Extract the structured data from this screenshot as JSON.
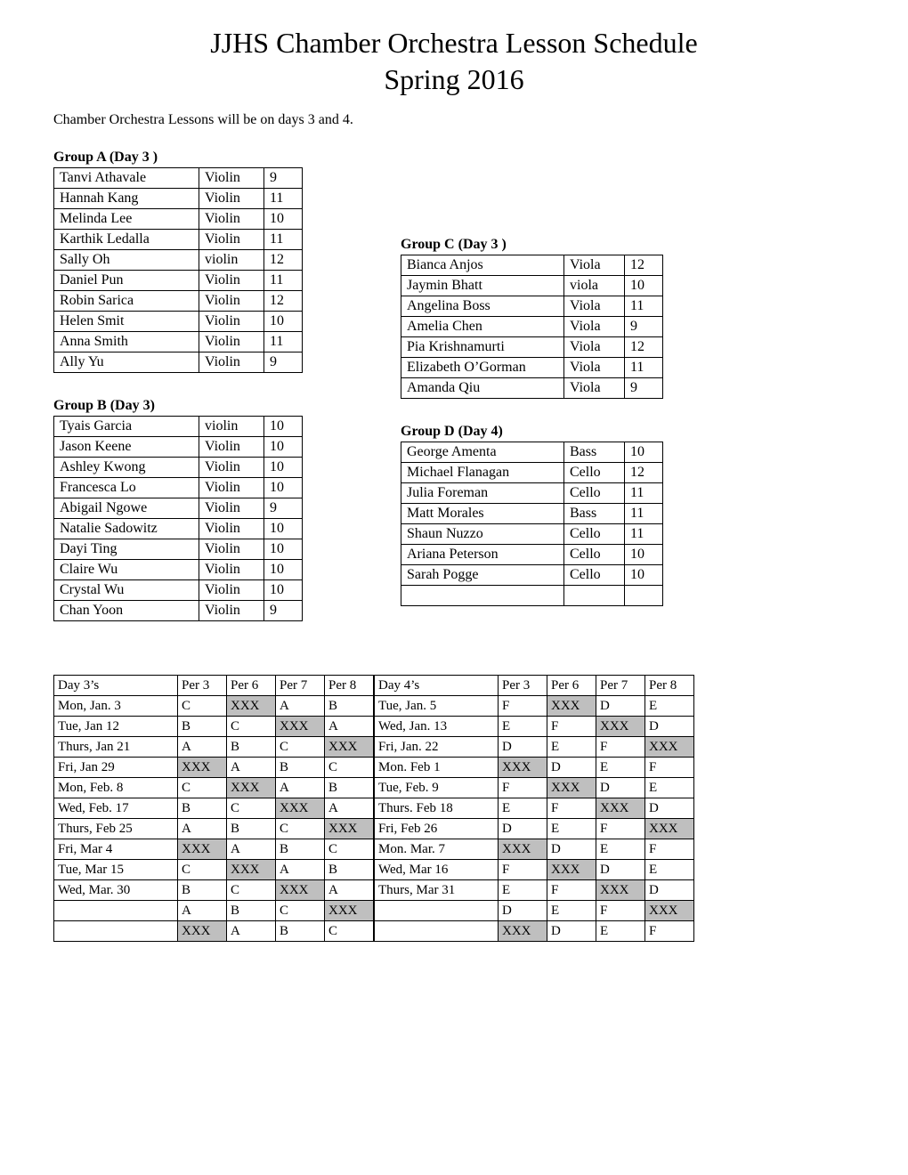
{
  "title_line1": "JJHS Chamber Orchestra Lesson Schedule",
  "title_line2": "Spring 2016",
  "note": "Chamber Orchestra Lessons will be on days 3 and 4.",
  "groupA": {
    "title": "Group A (Day 3 )",
    "rows": [
      [
        "Tanvi Athavale",
        "Violin",
        "9"
      ],
      [
        "Hannah Kang",
        "Violin",
        "11"
      ],
      [
        "Melinda Lee",
        "Violin",
        "10"
      ],
      [
        "Karthik Ledalla",
        "Violin",
        "11"
      ],
      [
        "Sally Oh",
        "violin",
        "12"
      ],
      [
        "Daniel Pun",
        "Violin",
        "11"
      ],
      [
        "Robin Sarica",
        "Violin",
        "12"
      ],
      [
        "Helen Smit",
        "Violin",
        "10"
      ],
      [
        "Anna Smith",
        "Violin",
        "11"
      ],
      [
        "Ally Yu",
        "Violin",
        "9"
      ]
    ]
  },
  "groupB": {
    "title": "Group B (Day 3)",
    "rows": [
      [
        "Tyais Garcia",
        "violin",
        "10"
      ],
      [
        "Jason Keene",
        "Violin",
        "10"
      ],
      [
        "Ashley Kwong",
        "Violin",
        "10"
      ],
      [
        "Francesca Lo",
        "Violin",
        "10"
      ],
      [
        "Abigail Ngowe",
        "Violin",
        "9"
      ],
      [
        "Natalie Sadowitz",
        "Violin",
        "10"
      ],
      [
        "Dayi Ting",
        "Violin",
        "10"
      ],
      [
        "Claire Wu",
        "Violin",
        "10"
      ],
      [
        "Crystal Wu",
        "Violin",
        "10"
      ],
      [
        "Chan Yoon",
        "Violin",
        "9"
      ]
    ]
  },
  "groupC": {
    "title": "Group C (Day 3 )",
    "rows": [
      [
        "Bianca Anjos",
        "Viola",
        "12"
      ],
      [
        "Jaymin Bhatt",
        "viola",
        "10"
      ],
      [
        "Angelina Boss",
        "Viola",
        "11"
      ],
      [
        "Amelia Chen",
        "Viola",
        "9"
      ],
      [
        "Pia Krishnamurti",
        "Viola",
        "12"
      ],
      [
        "Elizabeth O’Gorman",
        "Viola",
        "11"
      ],
      [
        "Amanda Qiu",
        "Viola",
        "9"
      ]
    ]
  },
  "groupD": {
    "title": "Group D (Day 4)",
    "rows": [
      [
        "George Amenta",
        "Bass",
        "10"
      ],
      [
        "Michael Flanagan",
        "Cello",
        "12"
      ],
      [
        "Julia Foreman",
        "Cello",
        "11"
      ],
      [
        "Matt Morales",
        "Bass",
        "11"
      ],
      [
        "Shaun Nuzzo",
        "Cello",
        "11"
      ],
      [
        "Ariana Peterson",
        "Cello",
        "10"
      ],
      [
        "Sarah Pogge",
        "Cello",
        "10"
      ],
      [
        "",
        "",
        ""
      ]
    ]
  },
  "schedule_left": {
    "header": [
      "Day 3’s",
      "Per 3",
      "Per 6",
      "Per 7",
      "Per 8"
    ],
    "rows": [
      [
        "Mon, Jan. 3",
        "C",
        "XXX",
        "A",
        "B"
      ],
      [
        "Tue, Jan 12",
        "B",
        "C",
        "XXX",
        "A"
      ],
      [
        "Thurs, Jan 21",
        "A",
        "B",
        "C",
        "XXX"
      ],
      [
        "Fri, Jan 29",
        "XXX",
        "A",
        "B",
        "C"
      ],
      [
        "Mon, Feb. 8",
        "C",
        "XXX",
        "A",
        "B"
      ],
      [
        "Wed, Feb. 17",
        "B",
        "C",
        "XXX",
        "A"
      ],
      [
        "Thurs, Feb 25",
        "A",
        "B",
        "C",
        "XXX"
      ],
      [
        "Fri, Mar 4",
        "XXX",
        "A",
        "B",
        "C"
      ],
      [
        "Tue, Mar 15",
        "C",
        "XXX",
        "A",
        "B"
      ],
      [
        "Wed, Mar. 30",
        "B",
        "C",
        "XXX",
        "A"
      ],
      [
        "",
        "A",
        "B",
        "C",
        "XXX"
      ],
      [
        "",
        "XXX",
        "A",
        "B",
        "C"
      ]
    ]
  },
  "schedule_right": {
    "header": [
      "Day 4’s",
      "Per 3",
      "Per 6",
      "Per 7",
      "Per 8"
    ],
    "rows": [
      [
        "Tue, Jan. 5",
        "F",
        "XXX",
        "D",
        "E"
      ],
      [
        "Wed, Jan. 13",
        "E",
        "F",
        "XXX",
        "D"
      ],
      [
        "Fri, Jan. 22",
        "D",
        "E",
        "F",
        "XXX"
      ],
      [
        "Mon. Feb 1",
        "XXX",
        "D",
        "E",
        "F"
      ],
      [
        "Tue, Feb. 9",
        "F",
        "XXX",
        "D",
        "E"
      ],
      [
        "Thurs. Feb 18",
        "E",
        "F",
        "XXX",
        "D"
      ],
      [
        "Fri, Feb 26",
        "D",
        "E",
        "F",
        "XXX"
      ],
      [
        "Mon. Mar. 7",
        "XXX",
        "D",
        "E",
        "F"
      ],
      [
        "Wed, Mar 16",
        "F",
        "XXX",
        "D",
        "E"
      ],
      [
        "Thurs, Mar 31",
        "E",
        "F",
        "XXX",
        "D"
      ],
      [
        "",
        "D",
        "E",
        "F",
        "XXX"
      ],
      [
        "",
        "XXX",
        "D",
        "E",
        "F"
      ]
    ]
  },
  "xxx_bg": "#bfbfbf"
}
